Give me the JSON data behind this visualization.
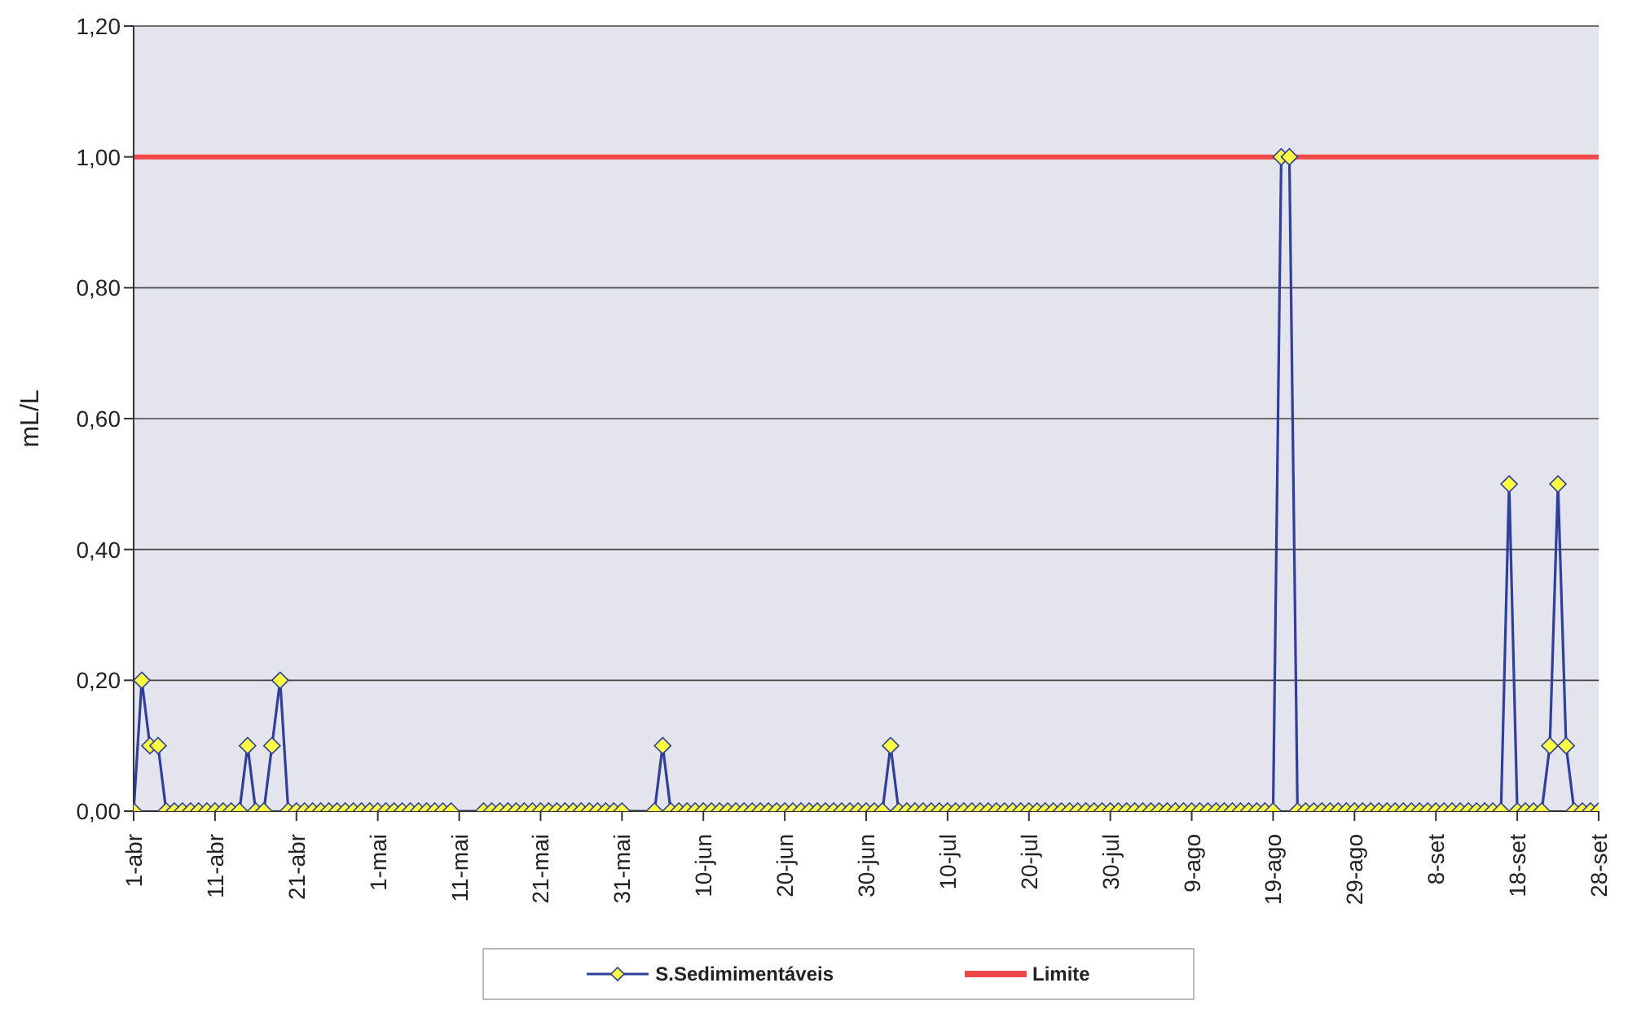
{
  "chart_data": {
    "type": "line",
    "ylabel": "mL/L",
    "categories": [
      "1-abr",
      null,
      null,
      null,
      null,
      null,
      null,
      null,
      null,
      null,
      "11-abr",
      null,
      null,
      null,
      null,
      null,
      null,
      null,
      null,
      null,
      "21-abr",
      null,
      null,
      null,
      null,
      null,
      null,
      null,
      null,
      null,
      "1-mai",
      null,
      null,
      null,
      null,
      null,
      null,
      null,
      null,
      null,
      "11-mai",
      null,
      null,
      null,
      null,
      null,
      null,
      null,
      null,
      null,
      "21-mai",
      null,
      null,
      null,
      null,
      null,
      null,
      null,
      null,
      null,
      "31-mai",
      null,
      null,
      null,
      null,
      null,
      null,
      null,
      null,
      null,
      "10-jun",
      null,
      null,
      null,
      null,
      null,
      null,
      null,
      null,
      null,
      "20-jun",
      null,
      null,
      null,
      null,
      null,
      null,
      null,
      null,
      null,
      "30-jun",
      null,
      null,
      null,
      null,
      null,
      null,
      null,
      null,
      null,
      "10-jul",
      null,
      null,
      null,
      null,
      null,
      null,
      null,
      null,
      null,
      "20-jul",
      null,
      null,
      null,
      null,
      null,
      null,
      null,
      null,
      null,
      "30-jul",
      null,
      null,
      null,
      null,
      null,
      null,
      null,
      null,
      null,
      "9-ago",
      null,
      null,
      null,
      null,
      null,
      null,
      null,
      null,
      null,
      "19-ago",
      null,
      null,
      null,
      null,
      null,
      null,
      null,
      null,
      null,
      "29-ago",
      null,
      null,
      null,
      null,
      null,
      null,
      null,
      null,
      null,
      "8-set",
      null,
      null,
      null,
      null,
      null,
      null,
      null,
      null,
      null,
      "18-set",
      null,
      null,
      null,
      null,
      null,
      null,
      null,
      null,
      null,
      "28-set"
    ],
    "series": [
      {
        "name": "S.Sedimimentáveis",
        "color": "#2e3f9e",
        "values": [
          0,
          0.2,
          0.1,
          0.1,
          0,
          0,
          0,
          0,
          0,
          0,
          0,
          0,
          0,
          0,
          0.1,
          0,
          0,
          0.1,
          0.2,
          0,
          0,
          0,
          0,
          0,
          0,
          0,
          0,
          0,
          0,
          0,
          0,
          0,
          0,
          0,
          0,
          0,
          0,
          0,
          0,
          0,
          null,
          null,
          null,
          0,
          0,
          0,
          0,
          0,
          0,
          0,
          0,
          0,
          0,
          0,
          0,
          0,
          0,
          0,
          0,
          0,
          0,
          null,
          null,
          null,
          0,
          0.1,
          0,
          0,
          0,
          0,
          0,
          0,
          0,
          0,
          0,
          0,
          0,
          0,
          0,
          0,
          0,
          0,
          0,
          0,
          0,
          0,
          0,
          0,
          0,
          0,
          0,
          0,
          0,
          0.1,
          0,
          0,
          0,
          0,
          0,
          0,
          0,
          0,
          0,
          0,
          0,
          0,
          0,
          0,
          0,
          0,
          0,
          0,
          0,
          0,
          0,
          0,
          0,
          0,
          0,
          0,
          0,
          0,
          0,
          0,
          0,
          0,
          0,
          0,
          0,
          0,
          0,
          0,
          0,
          0,
          0,
          0,
          0,
          0,
          0,
          0,
          0,
          1,
          1,
          0,
          0,
          0,
          0,
          0,
          0,
          0,
          0,
          0,
          0,
          0,
          0,
          0,
          0,
          0,
          0,
          0,
          0,
          0,
          0,
          0,
          0,
          0,
          0,
          0,
          0,
          0.5,
          0,
          0,
          0,
          0,
          0.1,
          0.5,
          0.1,
          0,
          0,
          0,
          0
        ]
      }
    ],
    "ylim": [
      0,
      1.2
    ],
    "yticks": [
      {
        "value": 0,
        "label": "0,00"
      },
      {
        "value": 0.2,
        "label": "0,20"
      },
      {
        "value": 0.4,
        "label": "0,40"
      },
      {
        "value": 0.6,
        "label": "0,60"
      },
      {
        "value": 0.8,
        "label": "0,80"
      },
      {
        "value": 1,
        "label": "1,00"
      },
      {
        "value": 1.2,
        "label": "1,20"
      }
    ],
    "ref_lines": [
      {
        "axis": "y",
        "value": 1,
        "label": "Limite",
        "color": "#f04848"
      }
    ],
    "grid": "y",
    "legend": "bottom",
    "marker": "diamond",
    "line_style": "solid"
  }
}
